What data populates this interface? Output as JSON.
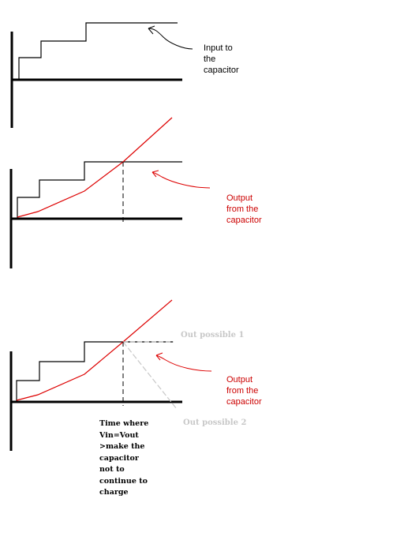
{
  "labels": {
    "input": "Input to\nthe\ncapacitor",
    "output_1": "Output\nfrom the\ncapacitor",
    "output_2": "Output\nfrom the\ncapacitor",
    "out_possible_1": "Out possible 1",
    "out_possible_2": "Out possible 2",
    "time_note": "Time where\nVin=Vout\n>make the\ncapacitor\nnot to\ncontinue to\ncharge"
  },
  "colors": {
    "axes": "#000000",
    "input_staircase": "#000000",
    "output_curve": "#dd0000",
    "possible_lines": "#c8c8c8"
  }
}
